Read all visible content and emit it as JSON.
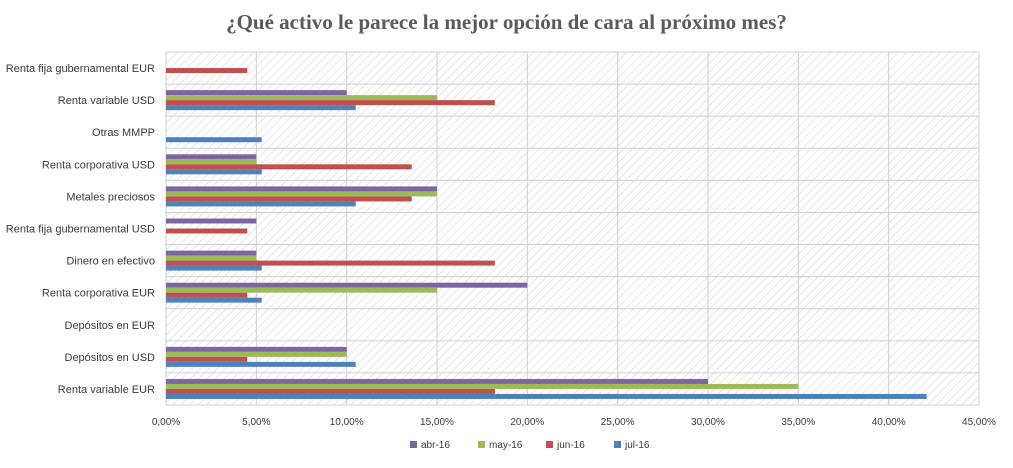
{
  "chart_data": {
    "type": "bar",
    "orientation": "horizontal",
    "title": "¿Qué activo le parece la mejor opción de cara al próximo mes?",
    "xlabel": "",
    "ylabel": "",
    "xlim": [
      0,
      45
    ],
    "tick_values": [
      0,
      5,
      10,
      15,
      20,
      25,
      30,
      35,
      40,
      45
    ],
    "tick_labels": [
      "0,00%",
      "5,00%",
      "10,00%",
      "15,00%",
      "20,00%",
      "25,00%",
      "30,00%",
      "35,00%",
      "40,00%",
      "45,00%"
    ],
    "categories": [
      "Renta fija gubernamental EUR",
      "Renta variable USD",
      "Otras MMPP",
      "Renta corporativa USD",
      "Metales preciosos",
      "Renta fija gubernamental USD",
      "Dinero en efectivo",
      "Renta corporativa EUR",
      "Depósitos en EUR",
      "Depósitos en USD",
      "Renta variable EUR"
    ],
    "series": [
      {
        "name": "abr-16",
        "color": "#8064a2",
        "values": [
          0,
          10,
          0,
          5,
          15,
          5,
          5,
          20,
          0,
          10,
          30
        ]
      },
      {
        "name": "may-16",
        "color": "#9bbb59",
        "values": [
          0,
          15,
          0,
          5,
          15,
          0,
          5,
          15,
          0,
          10,
          35
        ]
      },
      {
        "name": "jun-16",
        "color": "#c0504d",
        "values": [
          4.5,
          18.2,
          0,
          13.6,
          13.6,
          4.5,
          18.2,
          4.5,
          0,
          4.5,
          18.2
        ]
      },
      {
        "name": "jul-16",
        "color": "#4f81bd",
        "values": [
          0,
          10.5,
          5.3,
          5.3,
          10.5,
          0,
          5.3,
          5.3,
          0,
          10.5,
          42.1
        ]
      }
    ],
    "legend_position": "bottom",
    "grid": true
  }
}
